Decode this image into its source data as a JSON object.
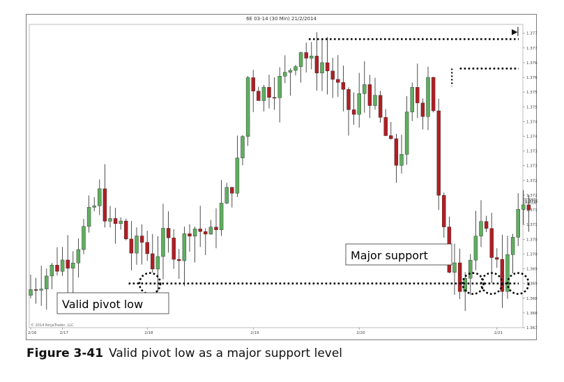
{
  "chart_data": {
    "type": "candlestick",
    "title": "6E 03-14 (30 Min)  21/2/2014",
    "copyright": "© 2014 NinjaTrader, LLC",
    "end_icon": "scroll-to-end-icon",
    "ylim": [
      1.3675,
      1.3778
    ],
    "price_ticks": [
      "1.3775",
      "1.3770",
      "1.3765",
      "1.3760",
      "1.3755",
      "1.3750",
      "1.3745",
      "1.3740",
      "1.3735",
      "1.3730",
      "1.3725",
      "1.3720",
      "1.3715",
      "1.3710",
      "1.3705",
      "1.3700",
      "1.3695",
      "1.3690",
      "1.3685",
      "1.3680",
      "1.3675"
    ],
    "current_price": "1.3718",
    "date_ticks": [
      {
        "label": "2/16",
        "at": 0
      },
      {
        "label": "2/17",
        "at": 6
      },
      {
        "label": "2/18",
        "at": 22
      },
      {
        "label": "2/19",
        "at": 42
      },
      {
        "label": "2/20",
        "at": 62
      },
      {
        "label": "2/21",
        "at": 88
      }
    ],
    "key_points": [
      [
        0,
        1.3688
      ],
      [
        4,
        1.3695
      ],
      [
        8,
        1.37
      ],
      [
        11,
        1.3712
      ],
      [
        13,
        1.372
      ],
      [
        15,
        1.3709
      ],
      [
        17,
        1.371
      ],
      [
        19,
        1.3701
      ],
      [
        21,
        1.3704
      ],
      [
        23,
        1.3697
      ],
      [
        25,
        1.3705
      ],
      [
        27,
        1.3702
      ],
      [
        28,
        1.37
      ],
      [
        30,
        1.371
      ],
      [
        34,
        1.3706
      ],
      [
        36,
        1.3716
      ],
      [
        38,
        1.3724
      ],
      [
        39,
        1.373
      ],
      [
        40,
        1.374
      ],
      [
        41,
        1.376
      ],
      [
        43,
        1.3755
      ],
      [
        46,
        1.3757
      ],
      [
        48,
        1.376
      ],
      [
        50,
        1.3767
      ],
      [
        51,
        1.377
      ],
      [
        53,
        1.3764
      ],
      [
        55,
        1.3765
      ],
      [
        57,
        1.376
      ],
      [
        59,
        1.3752
      ],
      [
        61,
        1.3747
      ],
      [
        63,
        1.3758
      ],
      [
        65,
        1.375
      ],
      [
        67,
        1.374
      ],
      [
        69,
        1.3731
      ],
      [
        70,
        1.3736
      ],
      [
        72,
        1.3754
      ],
      [
        74,
        1.375
      ],
      [
        75,
        1.3762
      ],
      [
        76,
        1.375
      ],
      [
        77,
        1.3718
      ],
      [
        78,
        1.3706
      ],
      [
        79,
        1.3696
      ],
      [
        80,
        1.37
      ],
      [
        81,
        1.3691
      ],
      [
        82,
        1.3693
      ],
      [
        84,
        1.3703
      ],
      [
        86,
        1.3712
      ],
      [
        87,
        1.3697
      ],
      [
        88,
        1.37
      ],
      [
        89,
        1.369
      ],
      [
        91,
        1.3705
      ],
      [
        93,
        1.3718
      ]
    ],
    "levels": {
      "top_resistance": 1.3773,
      "second_resistance": 1.3763,
      "support": 1.369
    },
    "annotations": {
      "major_support": "Major support",
      "valid_pivot_low": "Valid pivot low"
    }
  },
  "caption": {
    "label": "Figure 3-41",
    "text": "Valid pivot low as a major support level"
  }
}
